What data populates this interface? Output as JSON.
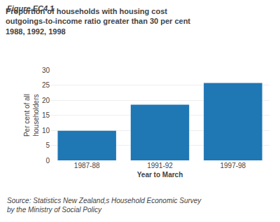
{
  "chart_data": {
    "type": "bar",
    "title": "Proportion of households with housing cost\noutgoings-to-income ratio greater than 30 per cent\n1988, 1992, 1998",
    "annotations": [
      "Figure EC4.1",
      "Source: Statistics New Zealand‚s Household Economic Survey\nby the Ministry of Social Policy"
    ],
    "x_label": "Year to March",
    "y_label": "Per cent of all\nhouseholders",
    "categories": [
      "1987-88",
      "1991-92",
      "1997-98"
    ],
    "values": [
      9.8,
      18.5,
      25.7
    ],
    "ylim": [
      0,
      30
    ],
    "yticks": [
      0,
      5,
      10,
      15,
      20,
      25,
      30
    ],
    "grid": true
  }
}
